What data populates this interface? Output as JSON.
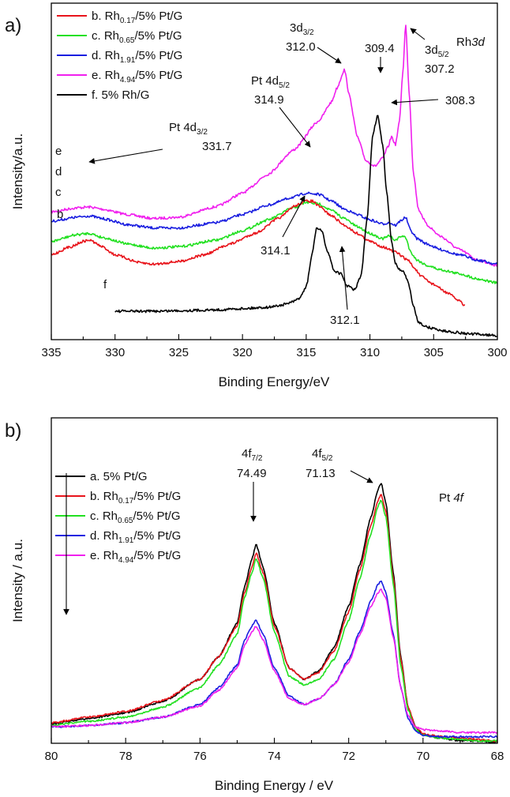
{
  "chart_data": [
    {
      "id": "rh3d",
      "type": "line",
      "panel_label": "a)",
      "xlabel": "Binding Energy/eV",
      "ylabel": "Intensity/a.u.",
      "xlim": [
        335,
        300
      ],
      "x_reversed": true,
      "xticks": [
        "335",
        "330",
        "325",
        "320",
        "315",
        "310",
        "305",
        "300"
      ],
      "grid": false,
      "legend_position": "top-left",
      "title_text": "Rh3d",
      "legend": [
        {
          "key": "b",
          "main": "b. Rh",
          "sub": "0.17",
          "tail": "/5% Pt/G",
          "color": "#e8141b"
        },
        {
          "key": "c",
          "main": "c. Rh",
          "sub": "0.65",
          "tail": "/5% Pt/G",
          "color": "#22e021"
        },
        {
          "key": "d",
          "main": "d. Rh",
          "sub": "1.91",
          "tail": "/5% Pt/G",
          "color": "#1a1ee0"
        },
        {
          "key": "e",
          "main": "e. Rh",
          "sub": "4.94",
          "tail": "/5% Pt/G",
          "color": "#f020ee"
        },
        {
          "key": "f",
          "main": "f. 5% Rh/G",
          "sub": "",
          "tail": "",
          "color": "#000000"
        }
      ],
      "curve_labels": {
        "e": "e",
        "d": "d",
        "c": "c",
        "b": "b",
        "f": "f"
      },
      "series": [
        {
          "name": "e",
          "color": "#f020ee",
          "x": [
            335,
            333,
            332,
            331,
            329,
            327,
            325,
            322,
            320,
            318,
            316,
            314,
            313,
            312.6,
            312.0,
            311.6,
            311.0,
            310.3,
            309.6,
            309.0,
            308.6,
            308.3,
            308.0,
            307.7,
            307.4,
            307.2,
            306.9,
            306.6,
            306.2,
            305.5,
            304.5,
            303,
            301.5,
            300
          ],
          "y": [
            0.27,
            0.285,
            0.288,
            0.28,
            0.26,
            0.245,
            0.25,
            0.29,
            0.34,
            0.41,
            0.5,
            0.61,
            0.68,
            0.73,
            0.8,
            0.7,
            0.55,
            0.46,
            0.44,
            0.47,
            0.51,
            0.55,
            0.52,
            0.6,
            0.8,
            0.97,
            0.7,
            0.42,
            0.28,
            0.22,
            0.18,
            0.13,
            0.09,
            0.07
          ]
        },
        {
          "name": "d",
          "color": "#1a1ee0",
          "x": [
            335,
            333,
            332,
            331,
            329,
            327,
            325,
            322,
            320,
            318,
            316,
            315,
            314,
            313,
            312,
            311,
            310,
            309,
            308.5,
            308,
            307.5,
            307.2,
            306.8,
            306.3,
            305.5,
            304.5,
            303,
            301.5,
            300
          ],
          "y": [
            0.235,
            0.25,
            0.255,
            0.245,
            0.222,
            0.21,
            0.21,
            0.23,
            0.26,
            0.295,
            0.325,
            0.34,
            0.335,
            0.31,
            0.28,
            0.26,
            0.24,
            0.225,
            0.23,
            0.22,
            0.24,
            0.25,
            0.2,
            0.17,
            0.15,
            0.13,
            0.11,
            0.09,
            0.075
          ]
        },
        {
          "name": "c",
          "color": "#22e021",
          "x": [
            335,
            333,
            332,
            331,
            329,
            327,
            325,
            322,
            320,
            318,
            316,
            315,
            314,
            313,
            312,
            311,
            310,
            309,
            308.5,
            308,
            307.5,
            307.2,
            306.8,
            306.3,
            305.5,
            304.5,
            303,
            301.5,
            300
          ],
          "y": [
            0.16,
            0.185,
            0.19,
            0.175,
            0.15,
            0.135,
            0.14,
            0.165,
            0.2,
            0.24,
            0.285,
            0.305,
            0.3,
            0.275,
            0.245,
            0.215,
            0.19,
            0.17,
            0.18,
            0.165,
            0.18,
            0.175,
            0.12,
            0.09,
            0.07,
            0.055,
            0.04,
            0.02,
            0.005
          ]
        },
        {
          "name": "b",
          "color": "#e8141b",
          "x": [
            335,
            333.5,
            332.5,
            332,
            331,
            330,
            328,
            327,
            325,
            323,
            321,
            319,
            317,
            316,
            315,
            314.5,
            314,
            313,
            312,
            311,
            310,
            309,
            308,
            307,
            306.5,
            306,
            305,
            304,
            303,
            302.5
          ],
          "y": [
            0.11,
            0.14,
            0.16,
            0.165,
            0.14,
            0.11,
            0.08,
            0.075,
            0.085,
            0.11,
            0.15,
            0.19,
            0.25,
            0.29,
            0.31,
            0.31,
            0.29,
            0.255,
            0.22,
            0.19,
            0.16,
            0.14,
            0.12,
            0.09,
            0.06,
            0.03,
            0.0,
            -0.03,
            -0.06,
            -0.08
          ]
        },
        {
          "name": "f",
          "color": "#000000",
          "x": [
            330,
            327,
            325,
            322,
            320,
            318,
            317,
            316,
            315.5,
            315,
            314.5,
            314.2,
            313.8,
            313.3,
            312.8,
            312.3,
            311.8,
            311.2,
            310.7,
            310.2,
            309.8,
            309.4,
            309.0,
            308.7,
            308.3,
            308.0,
            307.7,
            307.4,
            307.0,
            306.6,
            306.2,
            305.5,
            304,
            302,
            300
          ],
          "y": [
            -0.1,
            -0.1,
            -0.098,
            -0.095,
            -0.09,
            -0.085,
            -0.078,
            -0.065,
            -0.05,
            -0.01,
            0.12,
            0.21,
            0.2,
            0.12,
            0.05,
            0.04,
            -0.005,
            -0.02,
            0.03,
            0.25,
            0.55,
            0.63,
            0.52,
            0.35,
            0.16,
            0.08,
            0.055,
            0.05,
            0.01,
            -0.08,
            -0.14,
            -0.16,
            -0.175,
            -0.185,
            -0.19
          ]
        }
      ],
      "annotations": [
        {
          "id": "a1",
          "main": "3d",
          "sub": "3/2",
          "value": "312.0"
        },
        {
          "id": "a2",
          "main": "309.4",
          "sub": "",
          "value": ""
        },
        {
          "id": "a3",
          "main": "3d",
          "sub": "5/2",
          "value": "307.2"
        },
        {
          "id": "a4",
          "main": "Pt 4d",
          "sub": "5/2",
          "value": "314.9"
        },
        {
          "id": "a5",
          "main": "308.3",
          "sub": "",
          "value": ""
        },
        {
          "id": "a6",
          "main": "Pt 4d",
          "sub": "3/2",
          "value": "331.7"
        },
        {
          "id": "a7",
          "main": "314.1",
          "sub": "",
          "value": ""
        },
        {
          "id": "a8",
          "main": "312.1",
          "sub": "",
          "value": ""
        }
      ]
    },
    {
      "id": "pt4f",
      "type": "line",
      "panel_label": "b)",
      "xlabel": "Binding Energy / eV",
      "ylabel": "Intensity / a.u.",
      "xlim": [
        80,
        68
      ],
      "x_reversed": true,
      "xticks": [
        "80",
        "78",
        "76",
        "74",
        "72",
        "70",
        "68"
      ],
      "grid": false,
      "legend_position": "top-left",
      "title_text": "Pt 4f",
      "legend": [
        {
          "key": "a",
          "main": "a. 5% Pt/G",
          "sub": "",
          "tail": "",
          "color": "#000000"
        },
        {
          "key": "b",
          "main": "b. Rh",
          "sub": "0.17",
          "tail": "/5% Pt/G",
          "color": "#e8141b"
        },
        {
          "key": "c",
          "main": "c. Rh",
          "sub": "0.65",
          "tail": "/5% Pt/G",
          "color": "#22e021"
        },
        {
          "key": "d",
          "main": "d. Rh",
          "sub": "1.91",
          "tail": "/5% Pt/G",
          "color": "#1a1ee0"
        },
        {
          "key": "e",
          "main": "e. Rh",
          "sub": "4.94",
          "tail": "/5% Pt/G",
          "color": "#f020ee"
        }
      ],
      "series": [
        {
          "name": "a",
          "color": "#000000",
          "x": [
            80,
            79,
            78,
            77,
            76,
            75.5,
            75.0,
            74.8,
            74.6,
            74.49,
            74.3,
            74.0,
            73.6,
            73.2,
            72.8,
            72.4,
            72.0,
            71.7,
            71.4,
            71.2,
            71.13,
            71.0,
            70.8,
            70.6,
            70.4,
            70.2,
            70.0,
            69.5,
            69,
            68.5,
            68
          ],
          "y": [
            0.06,
            0.08,
            0.1,
            0.14,
            0.22,
            0.3,
            0.42,
            0.55,
            0.65,
            0.7,
            0.62,
            0.42,
            0.26,
            0.22,
            0.25,
            0.33,
            0.48,
            0.63,
            0.8,
            0.9,
            0.92,
            0.85,
            0.6,
            0.3,
            0.12,
            0.05,
            0.02,
            0.01,
            0.0,
            0.0,
            -0.005
          ]
        },
        {
          "name": "b",
          "color": "#e8141b",
          "x": [
            80,
            79,
            78,
            77,
            76,
            75.5,
            75.0,
            74.8,
            74.6,
            74.49,
            74.3,
            74.0,
            73.6,
            73.2,
            72.8,
            72.4,
            72.0,
            71.7,
            71.4,
            71.2,
            71.13,
            71.0,
            70.8,
            70.6,
            70.4,
            70.2,
            70.0,
            69.5,
            69,
            68.5,
            68
          ],
          "y": [
            0.065,
            0.085,
            0.105,
            0.145,
            0.22,
            0.3,
            0.41,
            0.53,
            0.62,
            0.67,
            0.6,
            0.41,
            0.26,
            0.22,
            0.245,
            0.32,
            0.46,
            0.61,
            0.77,
            0.86,
            0.88,
            0.82,
            0.58,
            0.29,
            0.12,
            0.05,
            0.025,
            0.015,
            0.01,
            0.005,
            0.0
          ]
        },
        {
          "name": "c",
          "color": "#22e021",
          "x": [
            80,
            79,
            78,
            77,
            76,
            75.5,
            75.0,
            74.8,
            74.6,
            74.49,
            74.3,
            74.0,
            73.6,
            73.2,
            72.8,
            72.4,
            72.0,
            71.7,
            71.4,
            71.2,
            71.13,
            71.0,
            70.8,
            70.6,
            70.4,
            70.2,
            70.0,
            69.5,
            69,
            68.5,
            68
          ],
          "y": [
            0.055,
            0.07,
            0.085,
            0.12,
            0.19,
            0.27,
            0.38,
            0.51,
            0.6,
            0.65,
            0.58,
            0.39,
            0.23,
            0.2,
            0.22,
            0.29,
            0.43,
            0.58,
            0.74,
            0.84,
            0.86,
            0.8,
            0.56,
            0.27,
            0.11,
            0.04,
            0.02,
            0.01,
            0.005,
            0.0,
            0.0
          ]
        },
        {
          "name": "d",
          "color": "#1a1ee0",
          "x": [
            80,
            79,
            78,
            77,
            76,
            75.5,
            75.0,
            74.8,
            74.6,
            74.49,
            74.3,
            74.0,
            73.6,
            73.2,
            72.8,
            72.4,
            72.0,
            71.7,
            71.4,
            71.2,
            71.13,
            71.0,
            70.8,
            70.6,
            70.4,
            70.2,
            70.0,
            69.5,
            69,
            68.5,
            68
          ],
          "y": [
            0.05,
            0.055,
            0.065,
            0.085,
            0.13,
            0.19,
            0.27,
            0.36,
            0.41,
            0.43,
            0.38,
            0.26,
            0.16,
            0.13,
            0.15,
            0.2,
            0.29,
            0.39,
            0.5,
            0.56,
            0.57,
            0.53,
            0.38,
            0.19,
            0.08,
            0.035,
            0.02,
            0.015,
            0.015,
            0.015,
            0.015
          ]
        },
        {
          "name": "e",
          "color": "#f020ee",
          "x": [
            80,
            79,
            78,
            77,
            76,
            75.5,
            75.0,
            74.8,
            74.6,
            74.49,
            74.3,
            74.0,
            73.6,
            73.2,
            72.8,
            72.4,
            72.0,
            71.7,
            71.4,
            71.2,
            71.13,
            71.0,
            70.8,
            70.6,
            70.4,
            70.2,
            70.0,
            69.5,
            69,
            68.5,
            68
          ],
          "y": [
            0.05,
            0.055,
            0.065,
            0.085,
            0.125,
            0.18,
            0.26,
            0.34,
            0.39,
            0.41,
            0.36,
            0.25,
            0.15,
            0.13,
            0.15,
            0.2,
            0.28,
            0.38,
            0.48,
            0.53,
            0.54,
            0.51,
            0.37,
            0.19,
            0.09,
            0.05,
            0.04,
            0.035,
            0.03,
            0.03,
            0.03
          ]
        }
      ],
      "annotations": [
        {
          "id": "b1",
          "main": "4f",
          "sub": "7/2",
          "value": "74.49"
        },
        {
          "id": "b2",
          "main": "4f",
          "sub": "5/2",
          "value": "71.13"
        }
      ]
    }
  ]
}
